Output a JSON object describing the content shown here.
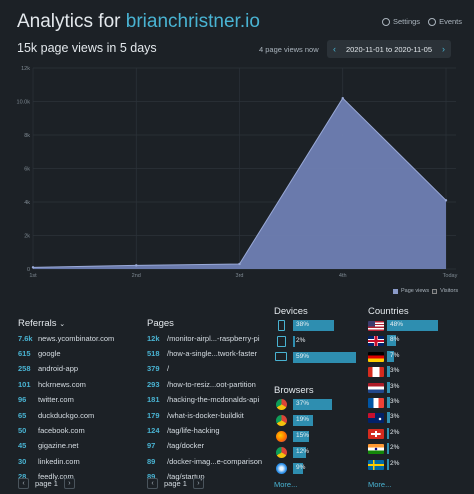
{
  "header": {
    "title_prefix": "Analytics for ",
    "site": "brianchristner.io",
    "settings": "Settings",
    "events": "Events",
    "subtitle": "15k page views in 5 days",
    "live": "4 page views now",
    "range": "2020-11-01 to 2020-11-05"
  },
  "chart_data": {
    "type": "area",
    "x": [
      "1st",
      "2nd",
      "3rd",
      "4th",
      "Today"
    ],
    "series": [
      {
        "name": "Page views",
        "values": [
          100,
          220,
          300,
          10200,
          4100
        ]
      }
    ],
    "ylim": [
      0,
      12000
    ],
    "yticks": [
      "0",
      "2k",
      "4k",
      "6k",
      "8k",
      "10.0k",
      "12k"
    ],
    "legend": [
      "Page views",
      "Visitors"
    ],
    "colors": {
      "fill": "#6f7fb3",
      "line": "#9aaad8"
    }
  },
  "referrers": {
    "heading": "Referrals",
    "items": [
      {
        "value": "7.6k",
        "label": "news.ycombinator.com"
      },
      {
        "value": "615",
        "label": "google"
      },
      {
        "value": "258",
        "label": "android-app"
      },
      {
        "value": "101",
        "label": "hckrnews.com"
      },
      {
        "value": "96",
        "label": "twitter.com"
      },
      {
        "value": "65",
        "label": "duckduckgo.com"
      },
      {
        "value": "50",
        "label": "facebook.com"
      },
      {
        "value": "45",
        "label": "gigazine.net"
      },
      {
        "value": "30",
        "label": "linkedin.com"
      },
      {
        "value": "28",
        "label": "feedly.com"
      }
    ],
    "page": "page 1"
  },
  "pages": {
    "heading": "Pages",
    "items": [
      {
        "value": "12k",
        "label": "/monitor-airpl...-raspberry-pi"
      },
      {
        "value": "518",
        "label": "/how-a-single...twork-faster"
      },
      {
        "value": "379",
        "label": "/"
      },
      {
        "value": "293",
        "label": "/how-to-resiz...oot-partition"
      },
      {
        "value": "181",
        "label": "/hacking-the-mcdonalds-api"
      },
      {
        "value": "179",
        "label": "/what-is-docker-buildkit"
      },
      {
        "value": "124",
        "label": "/tag/life-hacking"
      },
      {
        "value": "97",
        "label": "/tag/docker"
      },
      {
        "value": "89",
        "label": "/docker-imag...e-comparison"
      },
      {
        "value": "89",
        "label": "/tag/startup"
      }
    ],
    "page": "page 1"
  },
  "devices": {
    "heading": "Devices",
    "items": [
      {
        "label": "38%",
        "pct": 38,
        "icon": "phone-icon"
      },
      {
        "label": "2%",
        "pct": 2,
        "icon": "tablet-icon"
      },
      {
        "label": "59%",
        "pct": 59,
        "icon": "desktop-icon"
      }
    ]
  },
  "browsers": {
    "heading": "Browsers",
    "items": [
      {
        "label": "37%",
        "pct": 37,
        "icon": "chrome-icon"
      },
      {
        "label": "19%",
        "pct": 19,
        "icon": "chrome-icon"
      },
      {
        "label": "15%",
        "pct": 15,
        "icon": "firefox-icon"
      },
      {
        "label": "12%",
        "pct": 12,
        "icon": "chrome-icon"
      },
      {
        "label": "9%",
        "pct": 9,
        "icon": "safari-icon"
      }
    ],
    "more": "More..."
  },
  "countries": {
    "heading": "Countries",
    "items": [
      {
        "label": "48%",
        "pct": 48,
        "flag": "us-flag"
      },
      {
        "label": "8%",
        "pct": 8,
        "flag": "gb-flag"
      },
      {
        "label": "7%",
        "pct": 7,
        "flag": "de-flag"
      },
      {
        "label": "3%",
        "pct": 3,
        "flag": "ca-flag"
      },
      {
        "label": "3%",
        "pct": 3,
        "flag": "nl-flag"
      },
      {
        "label": "3%",
        "pct": 3,
        "flag": "fr-flag"
      },
      {
        "label": "3%",
        "pct": 3,
        "flag": "au-flag"
      },
      {
        "label": "2%",
        "pct": 2,
        "flag": "ch-flag"
      },
      {
        "label": "2%",
        "pct": 2,
        "flag": "in-flag"
      },
      {
        "label": "2%",
        "pct": 2,
        "flag": "se-flag"
      }
    ],
    "more": "More..."
  }
}
